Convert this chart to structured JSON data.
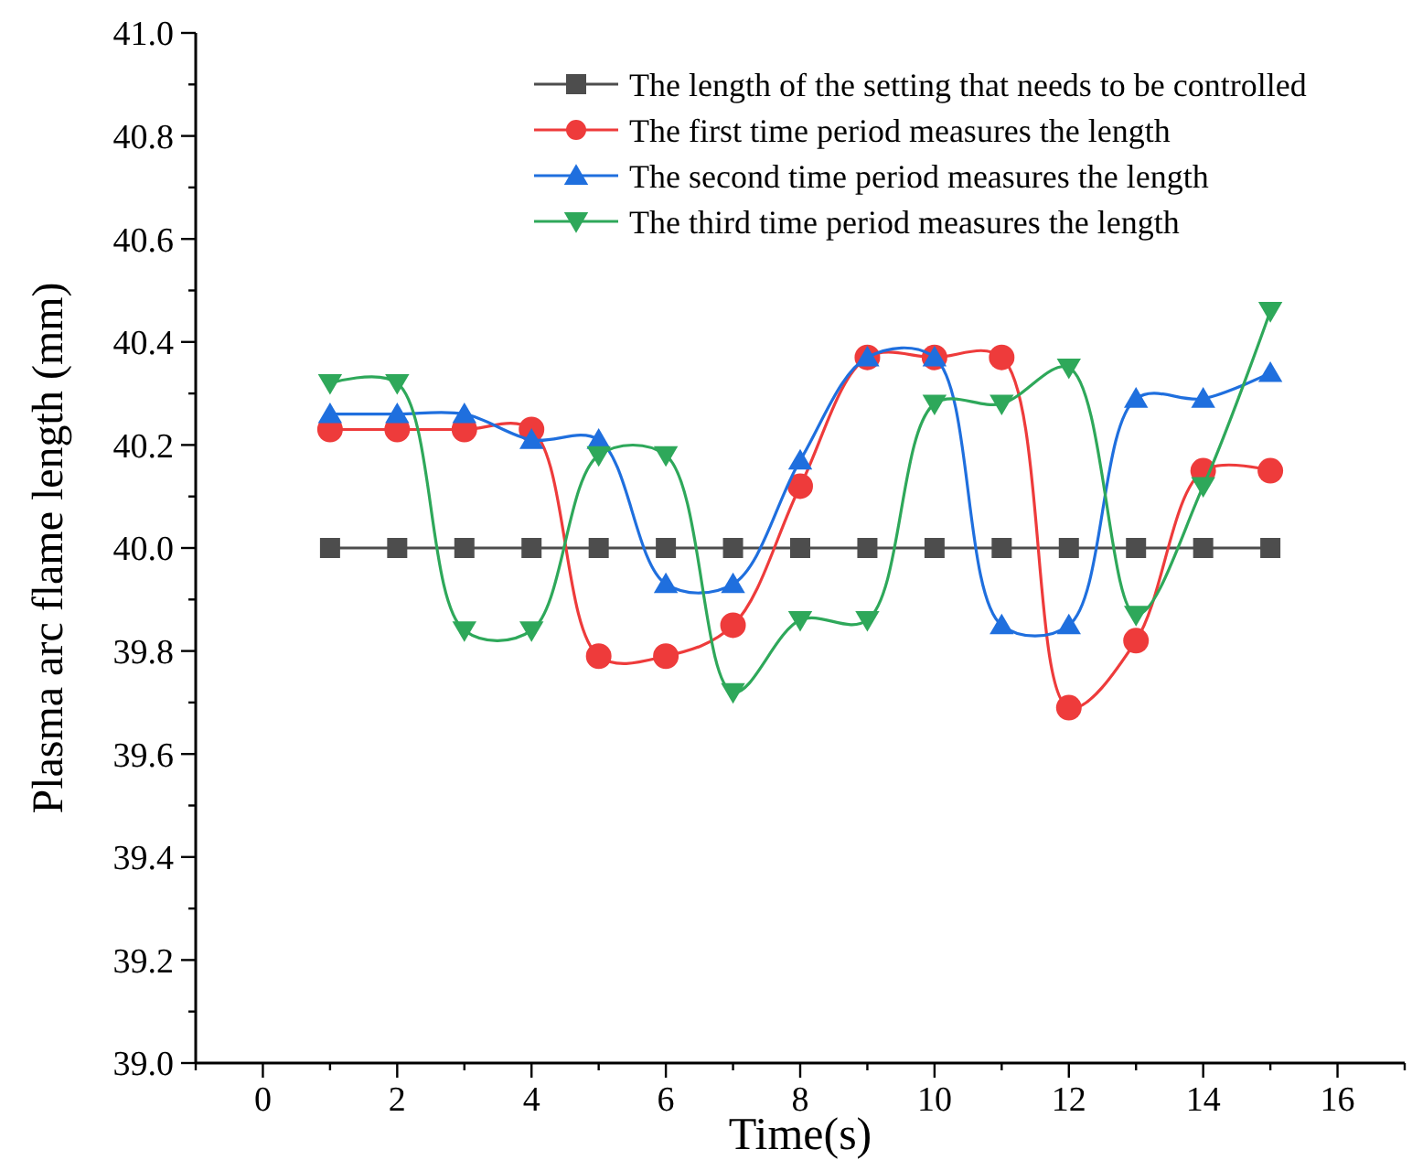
{
  "chart_data": {
    "type": "line",
    "xlabel": "Time(s)",
    "ylabel": "Plasma arc flame length (mm)",
    "x": [
      1,
      2,
      3,
      4,
      5,
      6,
      7,
      8,
      9,
      10,
      11,
      12,
      13,
      14,
      15
    ],
    "xlim": [
      -1,
      17
    ],
    "ylim": [
      39.0,
      41.0
    ],
    "xticks": [
      {
        "value": -1,
        "label": null
      },
      0,
      {
        "value": 1,
        "label": null
      },
      2,
      {
        "value": 3,
        "label": null
      },
      4,
      {
        "value": 5,
        "label": null
      },
      6,
      {
        "value": 7,
        "label": null
      },
      8,
      {
        "value": 9,
        "label": null
      },
      10,
      {
        "value": 11,
        "label": null
      },
      12,
      {
        "value": 13,
        "label": null
      },
      14,
      {
        "value": 15,
        "label": null
      },
      16,
      {
        "value": 17,
        "label": null
      }
    ],
    "yticks": [
      {
        "value": 39.0,
        "label": "39.0"
      },
      {
        "value": 39.1,
        "label": null
      },
      {
        "value": 39.2,
        "label": "39.2"
      },
      {
        "value": 39.3,
        "label": null
      },
      {
        "value": 39.4,
        "label": "39.4"
      },
      {
        "value": 39.5,
        "label": null
      },
      {
        "value": 39.6,
        "label": "39.6"
      },
      {
        "value": 39.7,
        "label": null
      },
      {
        "value": 39.8,
        "label": "39.8"
      },
      {
        "value": 39.9,
        "label": null
      },
      {
        "value": 40.0,
        "label": "40.0"
      },
      {
        "value": 40.1,
        "label": null
      },
      {
        "value": 40.2,
        "label": "40.2"
      },
      {
        "value": 40.3,
        "label": null
      },
      {
        "value": 40.4,
        "label": "40.4"
      },
      {
        "value": 40.5,
        "label": null
      },
      {
        "value": 40.6,
        "label": "40.6"
      },
      {
        "value": 40.7,
        "label": null
      },
      {
        "value": 40.8,
        "label": "40.8"
      },
      {
        "value": 40.9,
        "label": null
      },
      {
        "value": 41.0,
        "label": "41.0"
      }
    ],
    "grid": false,
    "legend": "top right",
    "line_style": "solid",
    "series": [
      {
        "name": "The length of the setting that needs to be controlled",
        "color": "#4d4d4d",
        "marker": "square",
        "values": [
          40,
          40,
          40,
          40,
          40,
          40,
          40,
          40,
          40,
          40,
          40,
          40,
          40,
          40,
          40
        ]
      },
      {
        "name": "The first time period measures the length",
        "color": "#ee3b3b",
        "marker": "circle",
        "values": [
          40.23,
          40.23,
          40.23,
          40.23,
          39.79,
          39.79,
          39.85,
          40.12,
          40.37,
          40.37,
          40.37,
          39.69,
          39.82,
          40.15,
          40.15
        ]
      },
      {
        "name": "The second time period measures the length",
        "color": "#1f6fde",
        "marker": "triangle",
        "values": [
          40.26,
          40.26,
          40.26,
          40.21,
          40.21,
          39.93,
          39.93,
          40.17,
          40.37,
          40.37,
          39.85,
          39.85,
          40.29,
          40.29,
          40.34
        ]
      },
      {
        "name": "The third time period measures the length",
        "color": "#2ea85a",
        "marker": "triangle-down",
        "values": [
          40.32,
          40.32,
          39.84,
          39.84,
          40.18,
          40.18,
          39.72,
          39.86,
          39.86,
          40.28,
          40.28,
          40.35,
          39.87,
          40.12,
          40.46
        ]
      }
    ]
  }
}
